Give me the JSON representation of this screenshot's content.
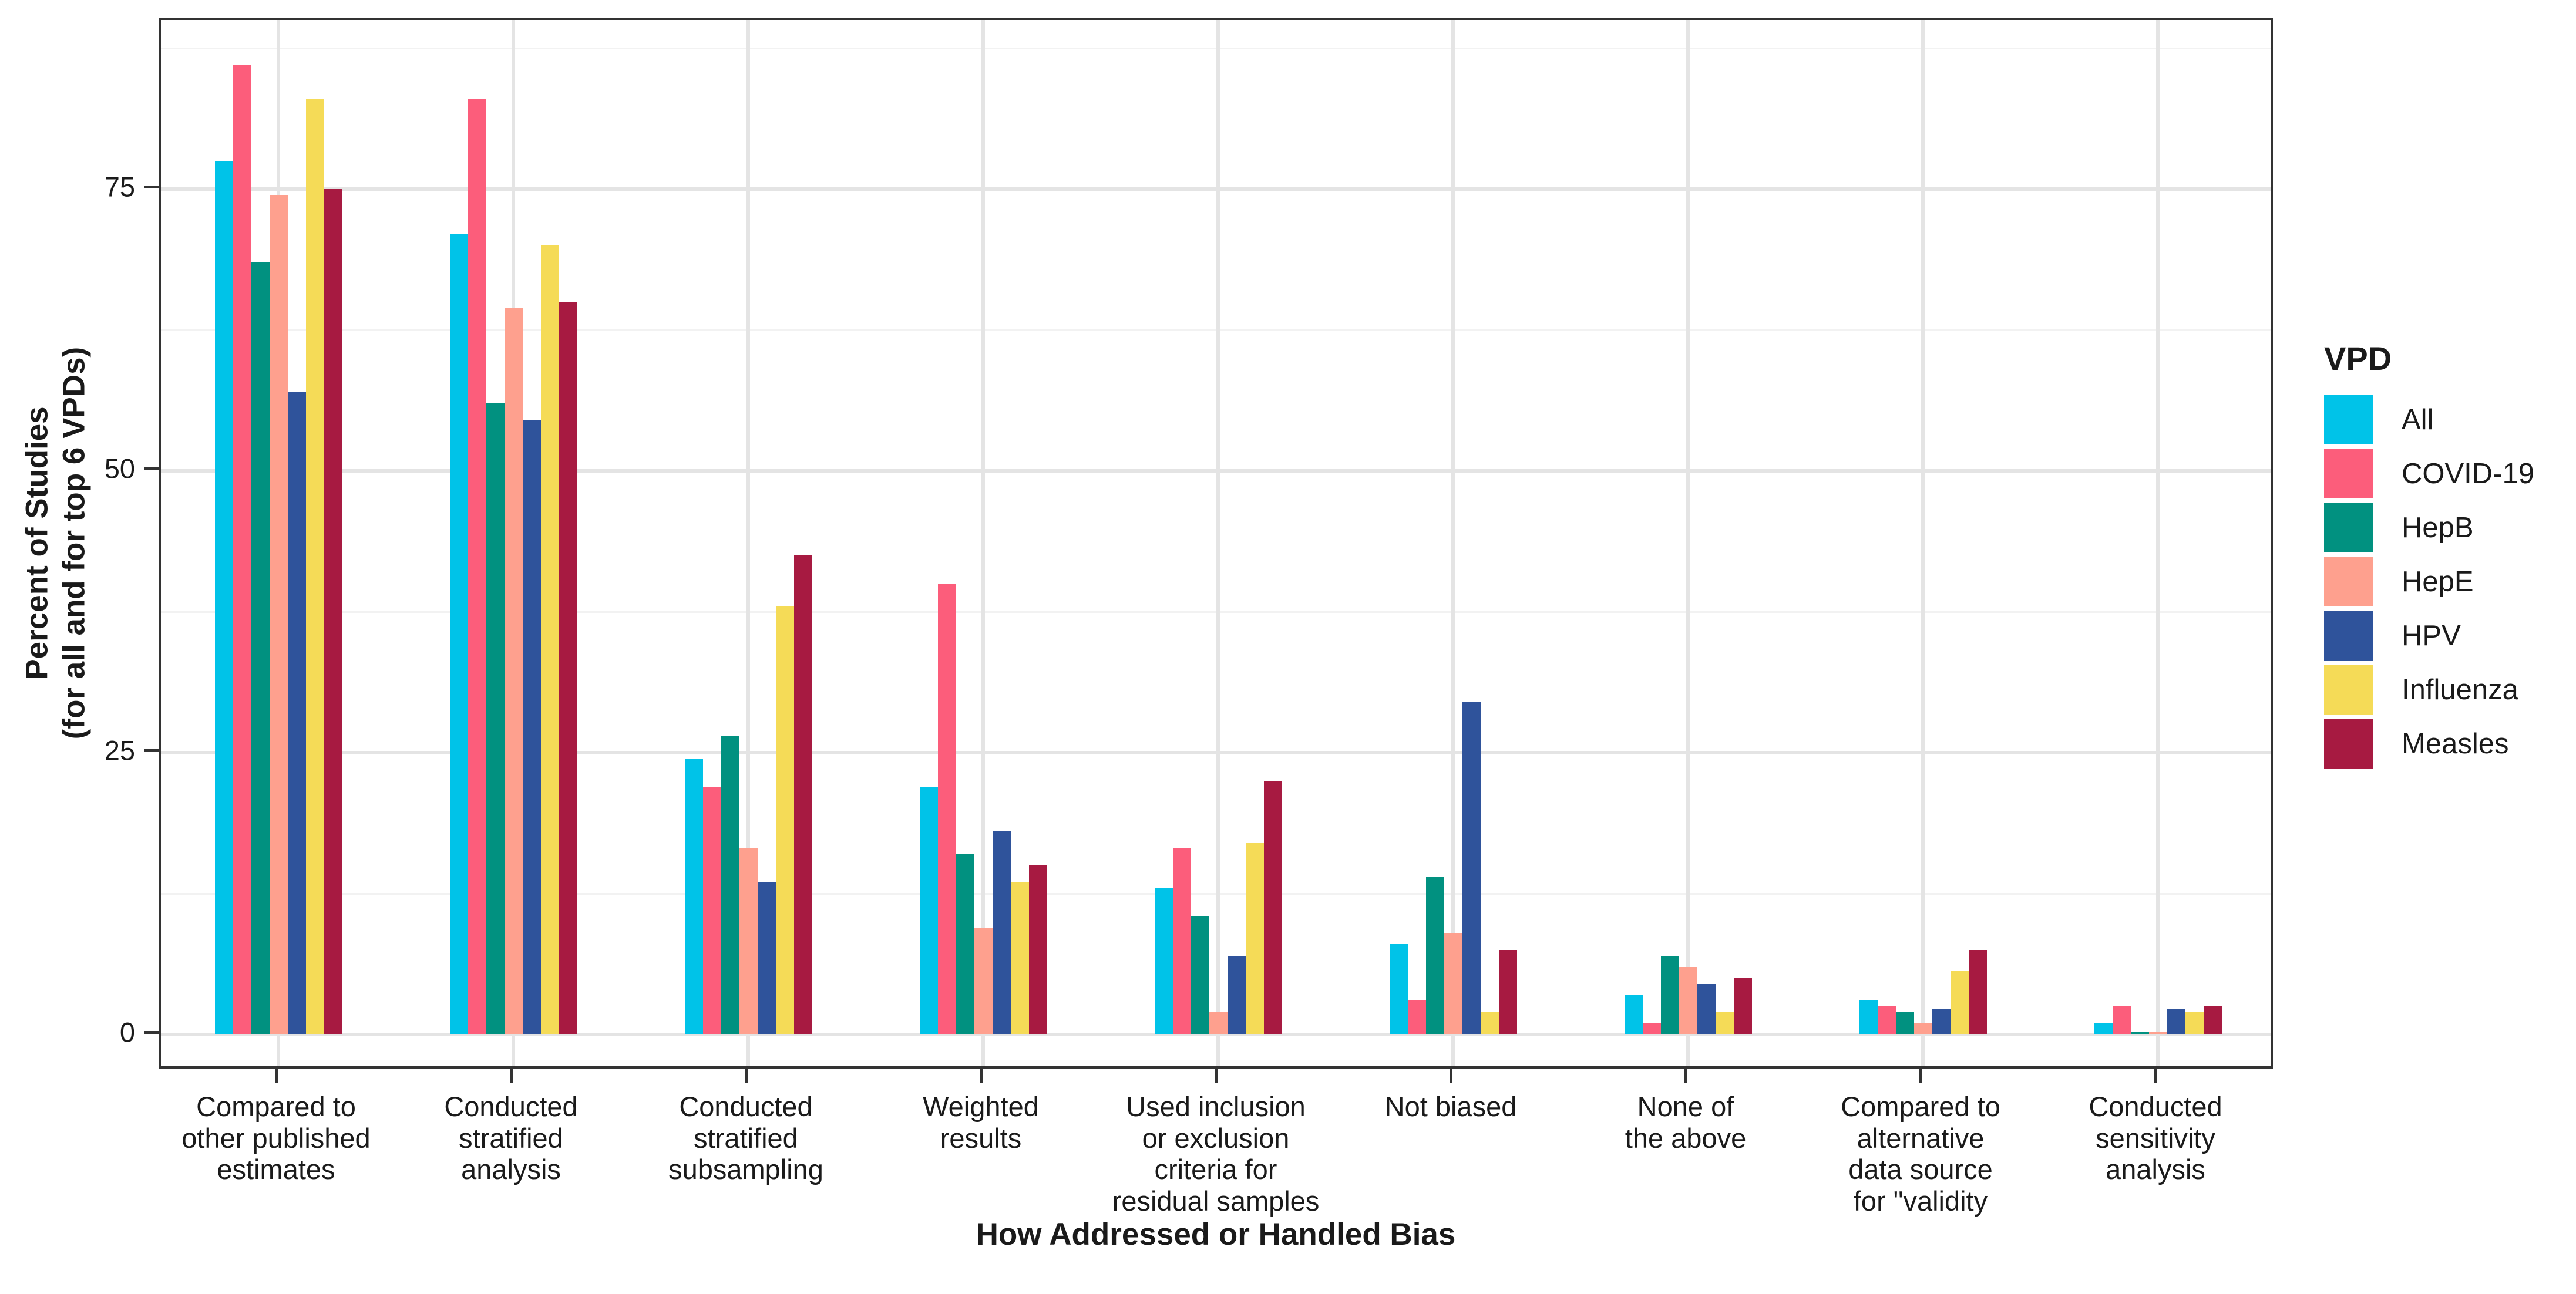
{
  "chart_data": {
    "type": "bar",
    "title": "",
    "xlabel": "How Addressed or Handled Bias",
    "ylabel": "Percent of Studies\n(for all and for top 6 VPDs)",
    "ylabel_lines": [
      "Percent of Studies",
      "(for all and for top 6 VPDs)"
    ],
    "legend_title": "VPD",
    "legend_position": "right",
    "grid": true,
    "ylim": [
      0,
      90
    ],
    "yticks": [
      0,
      25,
      50,
      75
    ],
    "minor_gridlines": [
      12.5,
      37.5,
      62.5,
      87.5
    ],
    "categories": [
      "Compared to other published estimates",
      "Conducted stratified analysis",
      "Conducted stratified subsampling",
      "Weighted results",
      "Used inclusion or exclusion criteria for residual samples",
      "Not biased",
      "None of the above",
      "Compared to alternative data source for \"validity",
      "Conducted sensitivity analysis"
    ],
    "category_label_lines": [
      [
        "Compared to",
        "other published",
        "estimates"
      ],
      [
        "Conducted",
        "stratified",
        "analysis"
      ],
      [
        "Conducted",
        "stratified",
        "subsampling"
      ],
      [
        "Weighted",
        "results"
      ],
      [
        "Used inclusion",
        "or exclusion",
        "criteria for",
        "residual samples"
      ],
      [
        "Not biased"
      ],
      [
        "None of",
        "the above"
      ],
      [
        "Compared to",
        "alternative",
        "data source",
        "for \"validity"
      ],
      [
        "Conducted",
        "sensitivity",
        "analysis"
      ]
    ],
    "series": [
      {
        "name": "All",
        "color": "#00C3E8",
        "values": [
          77.5,
          71,
          24.5,
          22,
          13,
          8,
          3.5,
          3,
          1
        ]
      },
      {
        "name": "COVID-19",
        "color": "#FC5D7B",
        "values": [
          86,
          83,
          22,
          40,
          16.5,
          3,
          1,
          2.5,
          2.5
        ]
      },
      {
        "name": "HepB",
        "color": "#019180",
        "values": [
          68.5,
          56,
          26.5,
          16,
          10.5,
          14,
          7,
          2,
          0
        ]
      },
      {
        "name": "HepE",
        "color": "#FEA08E",
        "values": [
          74.5,
          64.5,
          16.5,
          9.5,
          2,
          9,
          6,
          1,
          0
        ]
      },
      {
        "name": "HPV",
        "color": "#2F539B",
        "values": [
          57,
          54.5,
          13.5,
          18,
          7,
          29.5,
          4.5,
          2.3,
          2.3
        ]
      },
      {
        "name": "Influenza",
        "color": "#F5DB57",
        "values": [
          83,
          70,
          38,
          13.5,
          17,
          2,
          2,
          5.6,
          2
        ]
      },
      {
        "name": "Measles",
        "color": "#A71A41",
        "values": [
          75,
          65,
          42.5,
          15,
          22.5,
          7.5,
          5,
          7.5,
          2.5
        ]
      }
    ]
  },
  "colors": {
    "panel_border": "#333333",
    "grid_major": "#E4E4E4",
    "grid_minor": "#F2F2F2",
    "axis_text": "#1A1A1A",
    "tick": "#333333"
  }
}
